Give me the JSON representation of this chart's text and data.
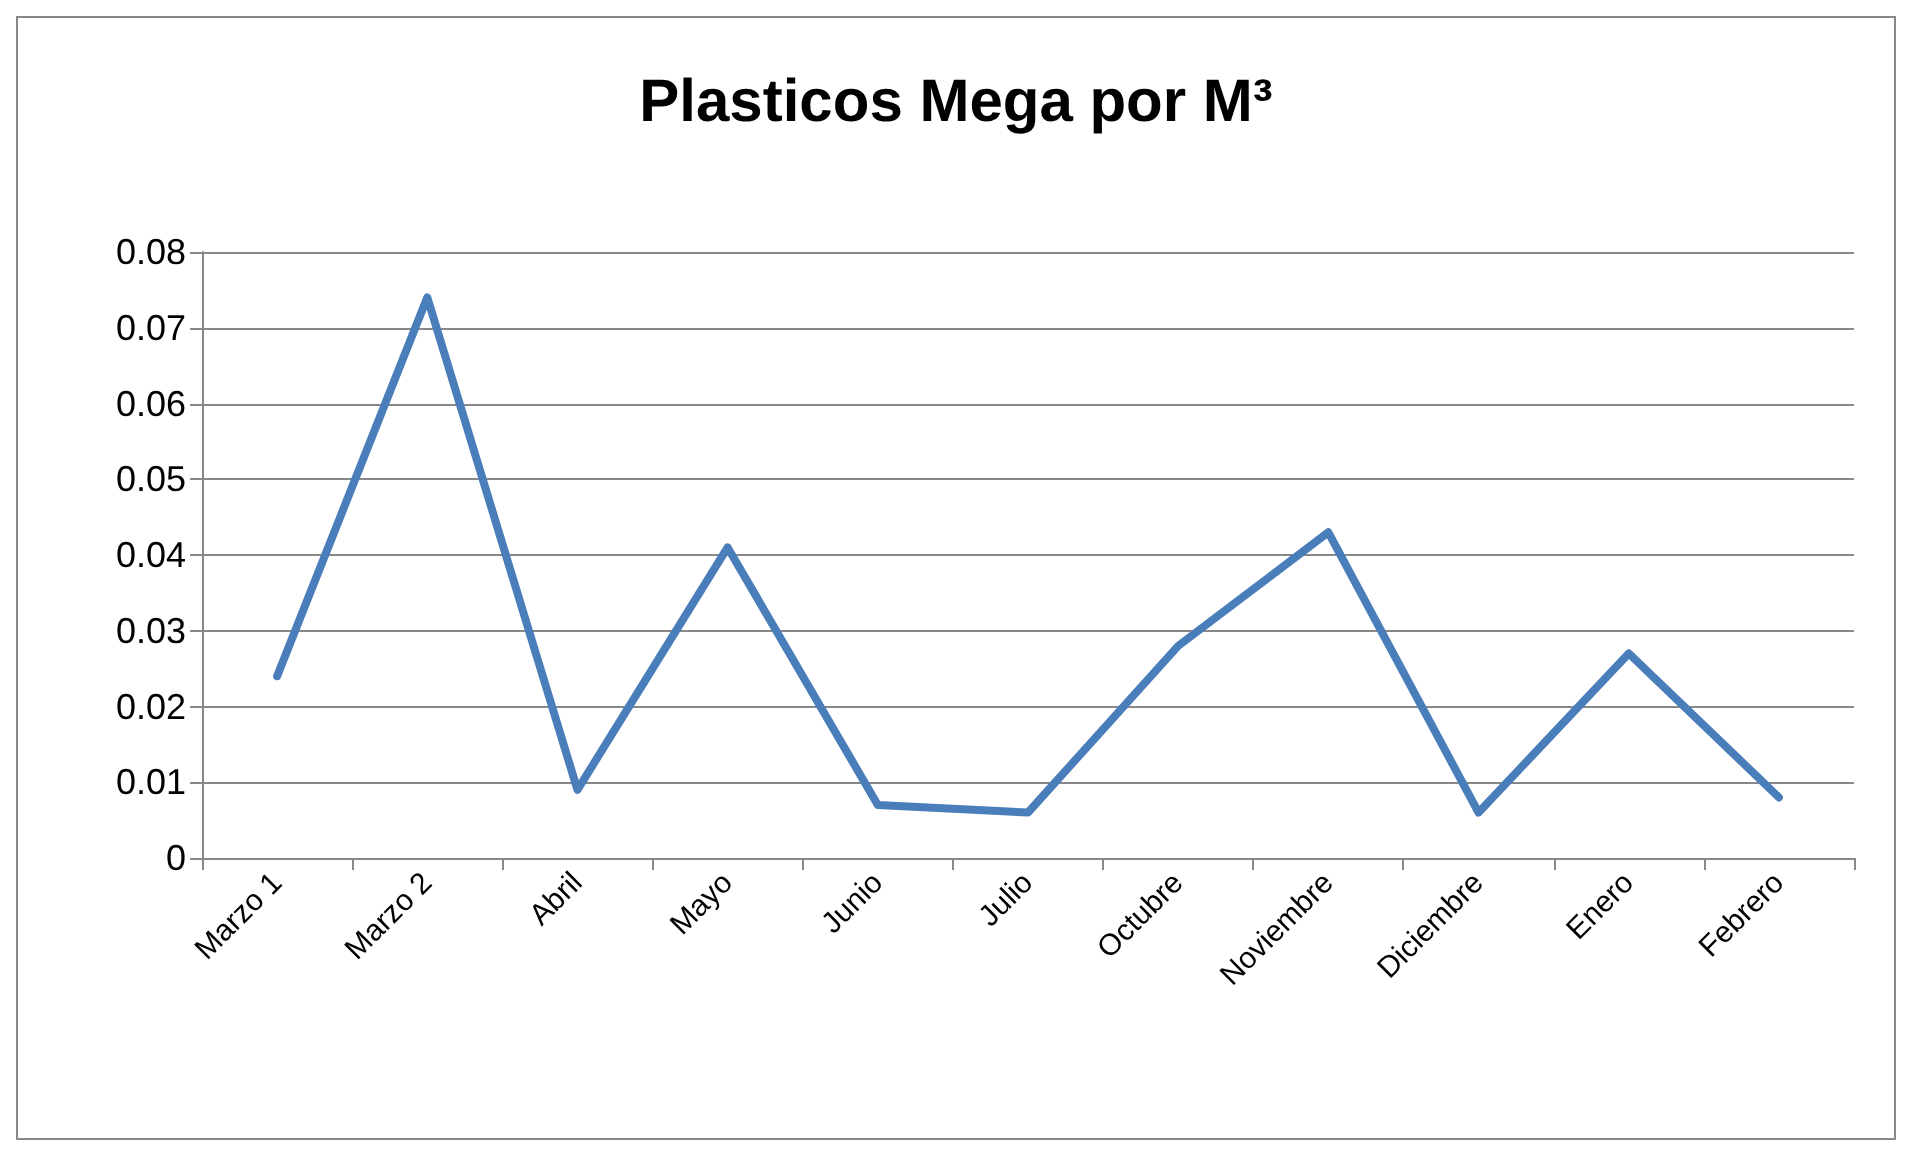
{
  "chart_data": {
    "type": "line",
    "title": "Plasticos Mega por M³",
    "categories": [
      "Marzo 1",
      "Marzo 2",
      "Abril",
      "Mayo",
      "Junio",
      "Julio",
      "Octubre",
      "Noviembre",
      "Diciembre",
      "Enero",
      "Febrero"
    ],
    "series": [
      {
        "color": "#4a7ebb",
        "values": [
          0.024,
          0.074,
          0.009,
          0.041,
          0.007,
          0.006,
          0.028,
          0.043,
          0.006,
          0.027,
          0.008
        ]
      }
    ],
    "ylim": [
      0,
      0.08
    ],
    "yticks": [
      0,
      0.01,
      0.02,
      0.03,
      0.04,
      0.05,
      0.06,
      0.07,
      0.08
    ],
    "grid": "y",
    "marker": "none",
    "line_style": "solid"
  }
}
